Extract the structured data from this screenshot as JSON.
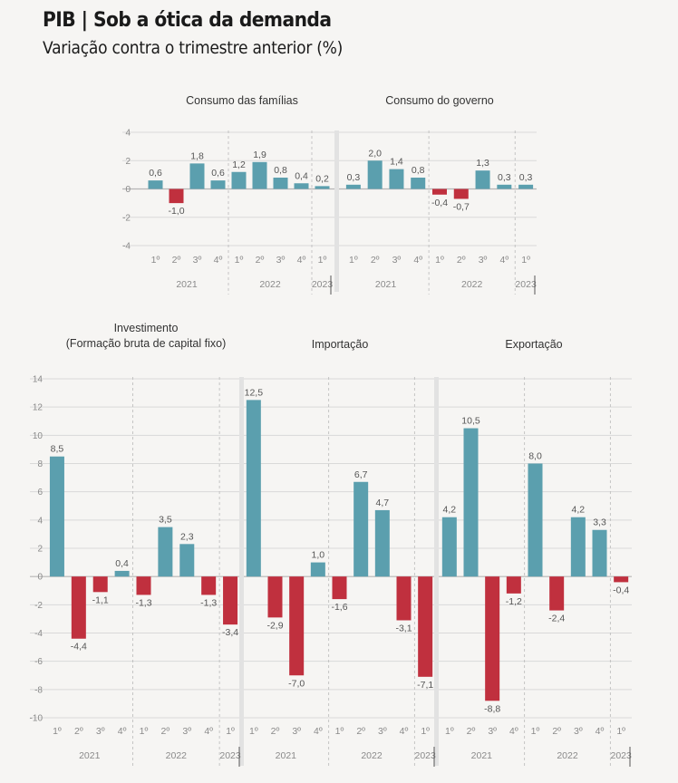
{
  "title": "PIB | Sob a ótica da demanda",
  "subtitle": "Variação contra o trimestre anterior (%)",
  "colors": {
    "positive": "#5b9fae",
    "negative": "#c0303e",
    "grid": "#d9d9d9",
    "zero": "#b5b5b5",
    "panel_divider": "#e2e2e2",
    "axis_text": "#8a8a8a",
    "label_text": "#555555"
  },
  "chart_data": [
    {
      "type": "bar",
      "title": "Consumo das famílias",
      "categories": [
        "1º",
        "2º",
        "3º",
        "4º",
        "1º",
        "2º",
        "3º",
        "4º",
        "1º"
      ],
      "years": [
        {
          "label": "2021",
          "count": 4
        },
        {
          "label": "2022",
          "count": 4
        },
        {
          "label": "2023",
          "count": 1
        }
      ],
      "values": [
        0.6,
        -1.0,
        1.8,
        0.6,
        1.2,
        1.9,
        0.8,
        0.4,
        0.2
      ],
      "value_labels": [
        "0,6",
        "-1,0",
        "1,8",
        "0,6",
        "1,2",
        "1,9",
        "0,8",
        "0,4",
        "0,2"
      ],
      "ylim": [
        -4,
        4
      ],
      "yticks": [
        -4,
        -2,
        0,
        2,
        4
      ],
      "ytick_labels": [
        "-4",
        "-2",
        "0",
        "2",
        "4"
      ]
    },
    {
      "type": "bar",
      "title": "Consumo do governo",
      "categories": [
        "1º",
        "2º",
        "3º",
        "4º",
        "1º",
        "2º",
        "3º",
        "4º",
        "1º"
      ],
      "years": [
        {
          "label": "2021",
          "count": 4
        },
        {
          "label": "2022",
          "count": 4
        },
        {
          "label": "2023",
          "count": 1
        }
      ],
      "values": [
        0.3,
        2.0,
        1.4,
        0.8,
        -0.4,
        -0.7,
        1.3,
        0.3,
        0.3
      ],
      "value_labels": [
        "0,3",
        "2,0",
        "1,4",
        "0,8",
        "-0,4",
        "-0,7",
        "1,3",
        "0,3",
        "0,3"
      ],
      "ylim": [
        -4,
        4
      ]
    },
    {
      "type": "bar",
      "title": "Investimento",
      "title_line2": "(Formação bruta de capital fixo)",
      "categories": [
        "1º",
        "2º",
        "3º",
        "4º",
        "1º",
        "2º",
        "3º",
        "4º",
        "1º"
      ],
      "years": [
        {
          "label": "2021",
          "count": 4
        },
        {
          "label": "2022",
          "count": 4
        },
        {
          "label": "2023",
          "count": 1
        }
      ],
      "values": [
        8.5,
        -4.4,
        -1.1,
        0.4,
        -1.3,
        3.5,
        2.3,
        -1.3,
        -3.4
      ],
      "value_labels": [
        "8,5",
        "-4,4",
        "-1,1",
        "0,4",
        "-1,3",
        "3,5",
        "2,3",
        "-1,3",
        "-3,4"
      ],
      "ylim": [
        -10,
        14
      ],
      "yticks": [
        -10,
        -8,
        -6,
        -4,
        -2,
        0,
        2,
        4,
        6,
        8,
        10,
        12,
        14
      ],
      "ytick_labels": [
        "-10",
        "-8",
        "-6",
        "-4",
        "-2",
        "0",
        "2",
        "4",
        "6",
        "8",
        "10",
        "12",
        "14"
      ]
    },
    {
      "type": "bar",
      "title": "Importação",
      "categories": [
        "1º",
        "2º",
        "3º",
        "4º",
        "1º",
        "2º",
        "3º",
        "4º",
        "1º"
      ],
      "years": [
        {
          "label": "2021",
          "count": 4
        },
        {
          "label": "2022",
          "count": 4
        },
        {
          "label": "2023",
          "count": 1
        }
      ],
      "values": [
        12.5,
        -2.9,
        -7.0,
        1.0,
        -1.6,
        6.7,
        4.7,
        -3.1,
        -7.1
      ],
      "value_labels": [
        "12,5",
        "-2,9",
        "-7,0",
        "1,0",
        "-1,6",
        "6,7",
        "4,7",
        "-3,1",
        "-7,1"
      ],
      "ylim": [
        -10,
        14
      ]
    },
    {
      "type": "bar",
      "title": "Exportação",
      "categories": [
        "1º",
        "2º",
        "3º",
        "4º",
        "1º",
        "2º",
        "3º",
        "4º",
        "1º"
      ],
      "years": [
        {
          "label": "2021",
          "count": 4
        },
        {
          "label": "2022",
          "count": 4
        },
        {
          "label": "2023",
          "count": 1
        }
      ],
      "values": [
        4.2,
        10.5,
        -8.8,
        -1.2,
        8.0,
        -2.4,
        4.2,
        3.3,
        -0.4
      ],
      "value_labels": [
        "4,2",
        "10,5",
        "-8,8",
        "-1,2",
        "8,0",
        "-2,4",
        "4,2",
        "3,3",
        "-0,4"
      ],
      "ylim": [
        -10,
        14
      ]
    }
  ]
}
